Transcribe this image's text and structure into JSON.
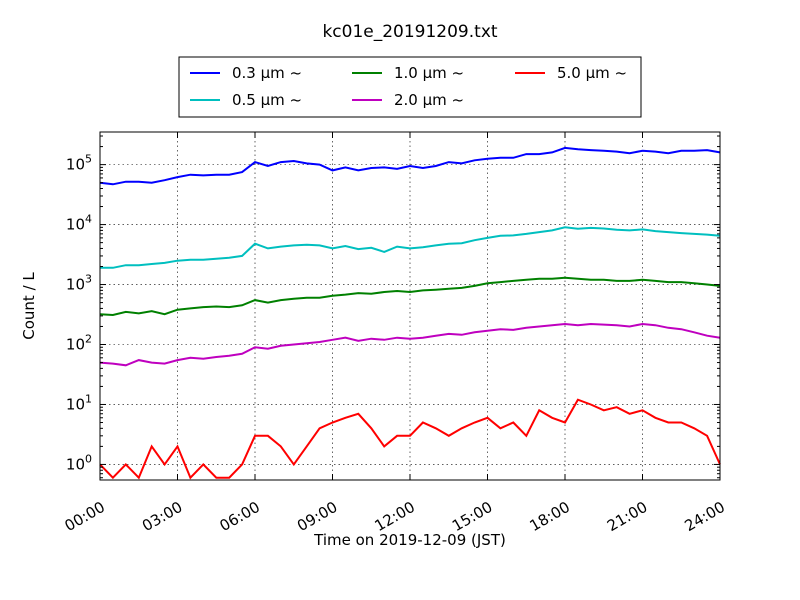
{
  "chart_data": {
    "type": "line",
    "title": "kc01e_20191209.txt",
    "xlabel": "Time on 2019-12-09 (JST)",
    "ylabel": "Count / L",
    "yscale": "log",
    "ylim": [
      0.55,
      350000
    ],
    "xlim": [
      "2019-12-09 00:00",
      "2019-12-10 00:00"
    ],
    "x_ticks": [
      "00:00",
      "03:00",
      "06:00",
      "09:00",
      "12:00",
      "15:00",
      "18:00",
      "21:00",
      "24:00"
    ],
    "y_ticks": [
      {
        "base": "10",
        "exp": "0"
      },
      {
        "base": "10",
        "exp": "1"
      },
      {
        "base": "10",
        "exp": "2"
      },
      {
        "base": "10",
        "exp": "3"
      },
      {
        "base": "10",
        "exp": "4"
      },
      {
        "base": "10",
        "exp": "5"
      }
    ],
    "grid": true,
    "legend_position": "top-center",
    "series": [
      {
        "name": "0.3 μm ~",
        "color": "#0000ff",
        "x": [
          "00:00",
          "00:30",
          "01:00",
          "01:30",
          "02:00",
          "02:30",
          "03:00",
          "03:30",
          "04:00",
          "04:30",
          "05:00",
          "05:30",
          "06:00",
          "06:30",
          "07:00",
          "07:30",
          "08:00",
          "08:30",
          "09:00",
          "09:30",
          "10:00",
          "10:30",
          "11:00",
          "11:30",
          "12:00",
          "12:30",
          "13:00",
          "13:30",
          "14:00",
          "14:30",
          "15:00",
          "15:30",
          "16:00",
          "16:30",
          "17:00",
          "17:30",
          "18:00",
          "18:30",
          "19:00",
          "19:30",
          "20:00",
          "20:30",
          "21:00",
          "21:30",
          "22:00",
          "22:30",
          "23:00",
          "23:30",
          "24:00"
        ],
        "values": [
          50000,
          47000,
          52000,
          52000,
          50000,
          55000,
          62000,
          68000,
          66000,
          68000,
          68000,
          75000,
          110000,
          95000,
          110000,
          115000,
          105000,
          100000,
          80000,
          90000,
          80000,
          88000,
          90000,
          85000,
          95000,
          88000,
          95000,
          110000,
          105000,
          118000,
          125000,
          130000,
          130000,
          150000,
          150000,
          160000,
          190000,
          180000,
          175000,
          170000,
          165000,
          155000,
          170000,
          165000,
          155000,
          170000,
          170000,
          175000,
          160000
        ]
      },
      {
        "name": "0.5 μm ~",
        "color": "#00bfbf",
        "x": [
          "00:00",
          "00:30",
          "01:00",
          "01:30",
          "02:00",
          "02:30",
          "03:00",
          "03:30",
          "04:00",
          "04:30",
          "05:00",
          "05:30",
          "06:00",
          "06:30",
          "07:00",
          "07:30",
          "08:00",
          "08:30",
          "09:00",
          "09:30",
          "10:00",
          "10:30",
          "11:00",
          "11:30",
          "12:00",
          "12:30",
          "13:00",
          "13:30",
          "14:00",
          "14:30",
          "15:00",
          "15:30",
          "16:00",
          "16:30",
          "17:00",
          "17:30",
          "18:00",
          "18:30",
          "19:00",
          "19:30",
          "20:00",
          "20:30",
          "21:00",
          "21:30",
          "22:00",
          "22:30",
          "23:00",
          "23:30",
          "24:00"
        ],
        "values": [
          1900,
          1900,
          2100,
          2100,
          2200,
          2300,
          2500,
          2600,
          2600,
          2700,
          2800,
          3000,
          4800,
          4000,
          4300,
          4500,
          4600,
          4500,
          4000,
          4400,
          3900,
          4100,
          3500,
          4300,
          4000,
          4200,
          4500,
          4800,
          4900,
          5500,
          6000,
          6500,
          6600,
          7000,
          7500,
          8000,
          9000,
          8500,
          8800,
          8600,
          8200,
          8000,
          8300,
          7800,
          7500,
          7200,
          7000,
          6800,
          6500
        ]
      },
      {
        "name": "1.0 μm ~",
        "color": "#008000",
        "x": [
          "00:00",
          "00:30",
          "01:00",
          "01:30",
          "02:00",
          "02:30",
          "03:00",
          "03:30",
          "04:00",
          "04:30",
          "05:00",
          "05:30",
          "06:00",
          "06:30",
          "07:00",
          "07:30",
          "08:00",
          "08:30",
          "09:00",
          "09:30",
          "10:00",
          "10:30",
          "11:00",
          "11:30",
          "12:00",
          "12:30",
          "13:00",
          "13:30",
          "14:00",
          "14:30",
          "15:00",
          "15:30",
          "16:00",
          "16:30",
          "17:00",
          "17:30",
          "18:00",
          "18:30",
          "19:00",
          "19:30",
          "20:00",
          "20:30",
          "21:00",
          "21:30",
          "22:00",
          "22:30",
          "23:00",
          "23:30",
          "24:00"
        ],
        "values": [
          320,
          310,
          350,
          330,
          360,
          320,
          380,
          400,
          420,
          430,
          420,
          450,
          550,
          500,
          550,
          580,
          600,
          600,
          650,
          680,
          720,
          700,
          750,
          780,
          750,
          800,
          820,
          850,
          880,
          950,
          1050,
          1100,
          1150,
          1200,
          1250,
          1250,
          1300,
          1250,
          1200,
          1200,
          1150,
          1150,
          1200,
          1150,
          1100,
          1100,
          1050,
          1000,
          950
        ]
      },
      {
        "name": "2.0 μm ~",
        "color": "#bf00bf",
        "x": [
          "00:00",
          "00:30",
          "01:00",
          "01:30",
          "02:00",
          "02:30",
          "03:00",
          "03:30",
          "04:00",
          "04:30",
          "05:00",
          "05:30",
          "06:00",
          "06:30",
          "07:00",
          "07:30",
          "08:00",
          "08:30",
          "09:00",
          "09:30",
          "10:00",
          "10:30",
          "11:00",
          "11:30",
          "12:00",
          "12:30",
          "13:00",
          "13:30",
          "14:00",
          "14:30",
          "15:00",
          "15:30",
          "16:00",
          "16:30",
          "17:00",
          "17:30",
          "18:00",
          "18:30",
          "19:00",
          "19:30",
          "20:00",
          "20:30",
          "21:00",
          "21:30",
          "22:00",
          "22:30",
          "23:00",
          "23:30",
          "24:00"
        ],
        "values": [
          50,
          48,
          45,
          55,
          50,
          48,
          55,
          60,
          58,
          62,
          65,
          70,
          90,
          85,
          95,
          100,
          105,
          110,
          120,
          130,
          115,
          125,
          120,
          130,
          125,
          130,
          140,
          150,
          145,
          160,
          170,
          180,
          175,
          190,
          200,
          210,
          220,
          210,
          220,
          215,
          210,
          200,
          220,
          210,
          190,
          180,
          160,
          140,
          130
        ]
      },
      {
        "name": "5.0 μm ~",
        "color": "#ff0000",
        "x": [
          "00:00",
          "00:30",
          "01:00",
          "01:30",
          "02:00",
          "02:30",
          "03:00",
          "03:30",
          "04:00",
          "04:30",
          "05:00",
          "05:30",
          "06:00",
          "06:30",
          "07:00",
          "07:30",
          "08:00",
          "08:30",
          "09:00",
          "09:30",
          "10:00",
          "10:30",
          "11:00",
          "11:30",
          "12:00",
          "12:30",
          "13:00",
          "13:30",
          "14:00",
          "14:30",
          "15:00",
          "15:30",
          "16:00",
          "16:30",
          "17:00",
          "17:30",
          "18:00",
          "18:30",
          "19:00",
          "19:30",
          "20:00",
          "20:30",
          "21:00",
          "21:30",
          "22:00",
          "22:30",
          "23:00",
          "23:30",
          "24:00"
        ],
        "values": [
          1,
          0.6,
          1,
          0.6,
          2,
          1,
          2,
          0.6,
          1,
          0.6,
          0.6,
          1,
          3,
          3,
          2,
          1,
          2,
          4,
          5,
          6,
          7,
          4,
          2,
          3,
          3,
          5,
          4,
          3,
          4,
          5,
          6,
          4,
          5,
          3,
          8,
          6,
          5,
          12,
          10,
          8,
          9,
          7,
          8,
          6,
          5,
          5,
          4,
          3,
          1
        ]
      }
    ]
  }
}
